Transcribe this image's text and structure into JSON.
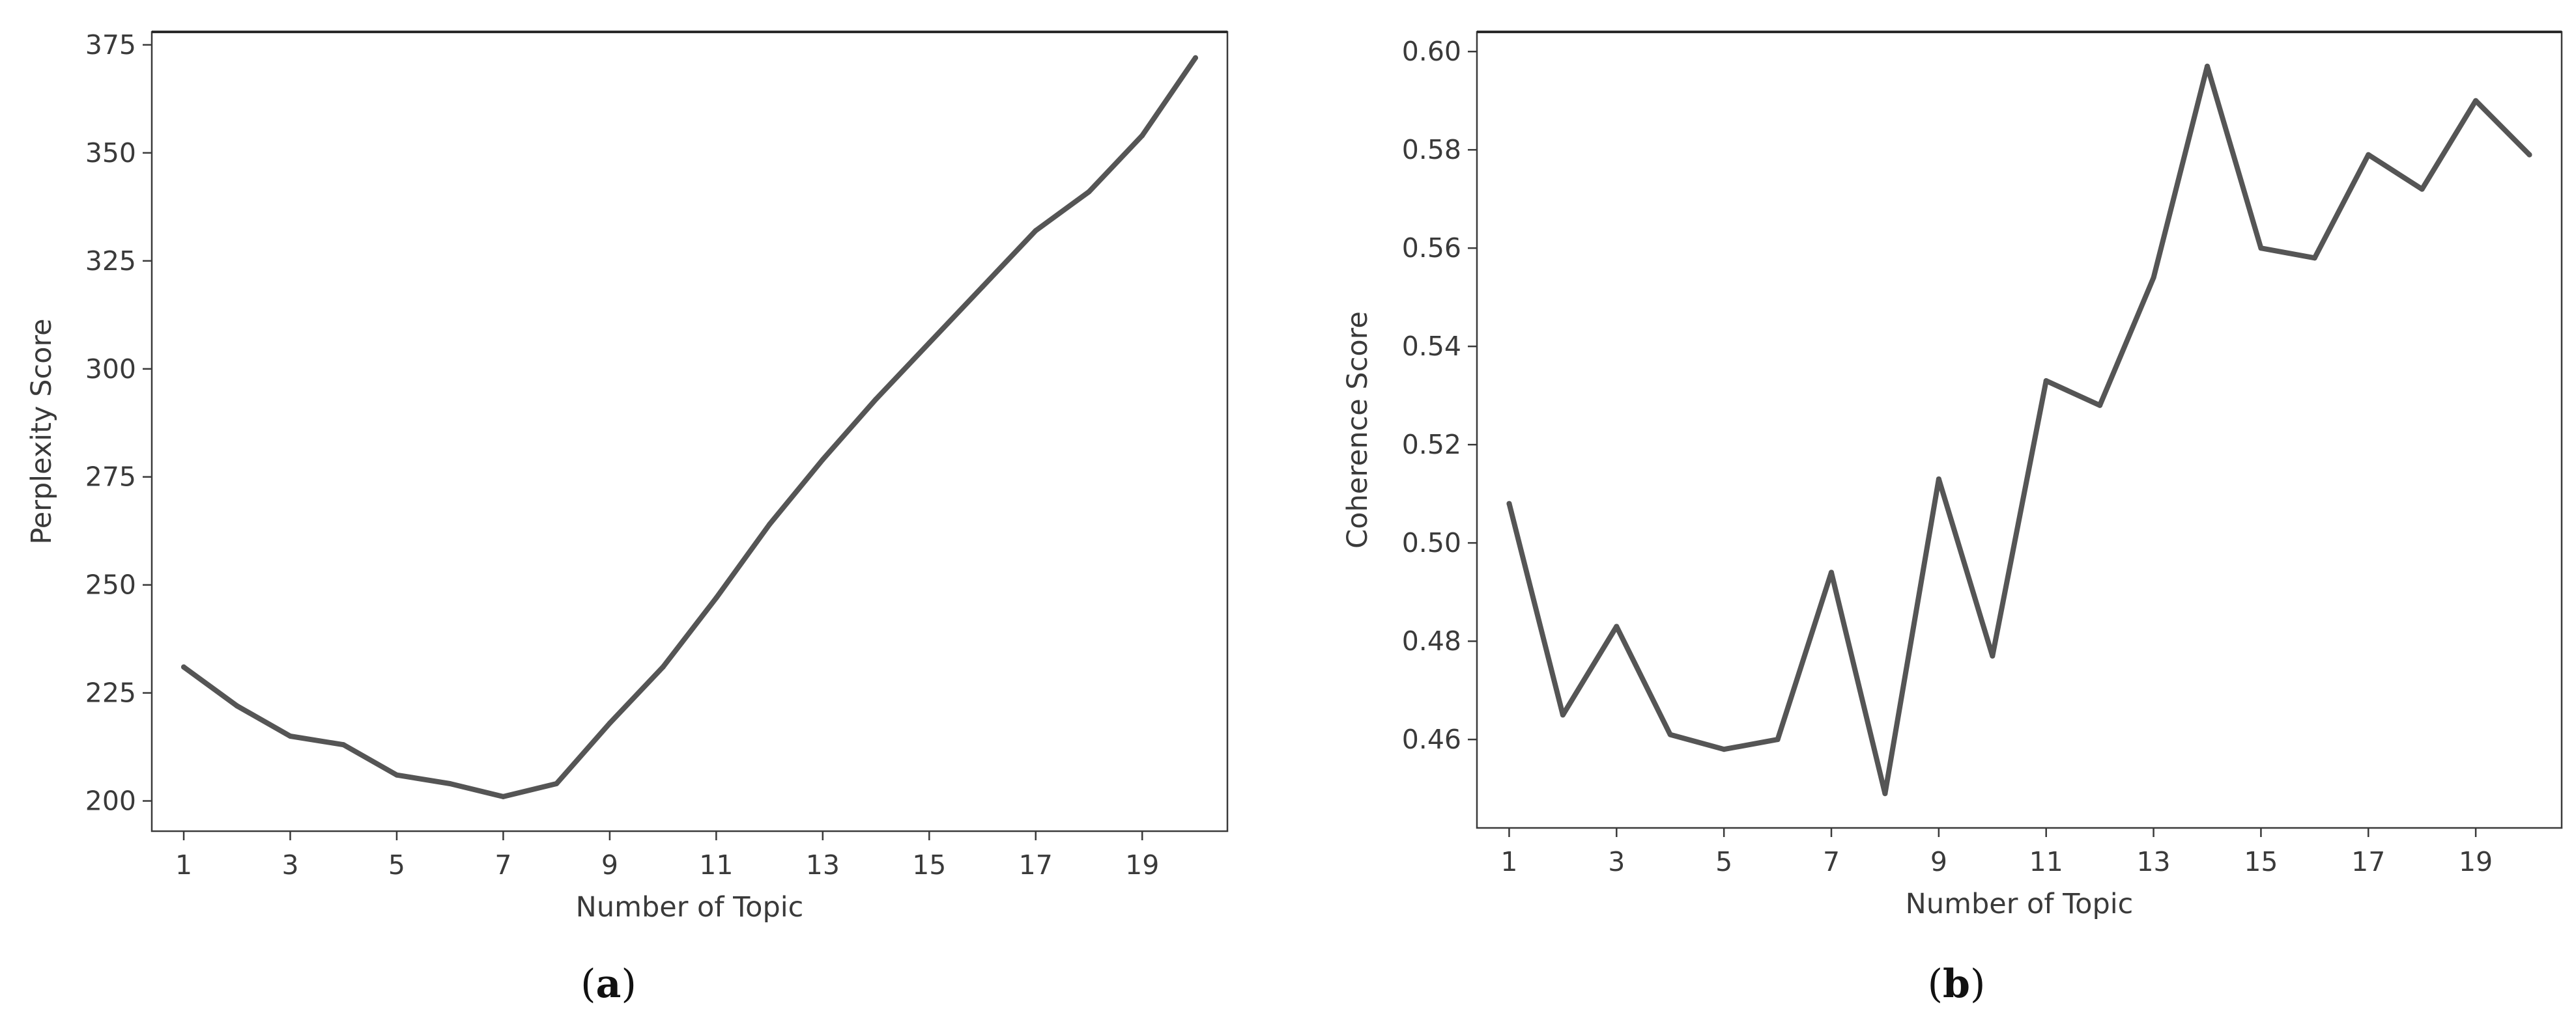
{
  "chart_data": [
    {
      "type": "line",
      "panel_label": "a",
      "xlabel": "Number of Topic",
      "ylabel": "Perplexity Score",
      "x": [
        1,
        2,
        3,
        4,
        5,
        6,
        7,
        8,
        9,
        10,
        11,
        12,
        13,
        14,
        15,
        16,
        17,
        18,
        19,
        20
      ],
      "xticks": [
        1,
        3,
        5,
        7,
        9,
        11,
        13,
        15,
        17,
        19
      ],
      "yticks": [
        200,
        225,
        250,
        275,
        300,
        325,
        350,
        375
      ],
      "xlim": [
        0.4,
        20.6
      ],
      "ylim": [
        193,
        378
      ],
      "grid": false,
      "color": "#555555",
      "series": [
        {
          "values": [
            231,
            222,
            215,
            213,
            206,
            204,
            201,
            204,
            218,
            231,
            247,
            264,
            279,
            293,
            306,
            319,
            332,
            341,
            354,
            372
          ]
        }
      ]
    },
    {
      "type": "line",
      "panel_label": "b",
      "xlabel": "Number of Topic",
      "ylabel": "Coherence Score",
      "x": [
        1,
        2,
        3,
        4,
        5,
        6,
        7,
        8,
        9,
        10,
        11,
        12,
        13,
        14,
        15,
        16,
        17,
        18,
        19,
        20
      ],
      "xticks": [
        1,
        3,
        5,
        7,
        9,
        11,
        13,
        15,
        17,
        19
      ],
      "yticks": [
        0.46,
        0.48,
        0.5,
        0.52,
        0.54,
        0.56,
        0.58,
        0.6
      ],
      "ytick_labels": [
        "0.46",
        "0.48",
        "0.50",
        "0.52",
        "0.54",
        "0.56",
        "0.58",
        "0.60"
      ],
      "xlim": [
        0.4,
        20.6
      ],
      "ylim": [
        0.442,
        0.604
      ],
      "grid": false,
      "color": "#555555",
      "series": [
        {
          "values": [
            0.508,
            0.465,
            0.483,
            0.461,
            0.458,
            0.46,
            0.494,
            0.449,
            0.513,
            0.477,
            0.533,
            0.528,
            0.554,
            0.597,
            0.56,
            0.558,
            0.579,
            0.572,
            0.59,
            0.579
          ]
        }
      ]
    }
  ]
}
